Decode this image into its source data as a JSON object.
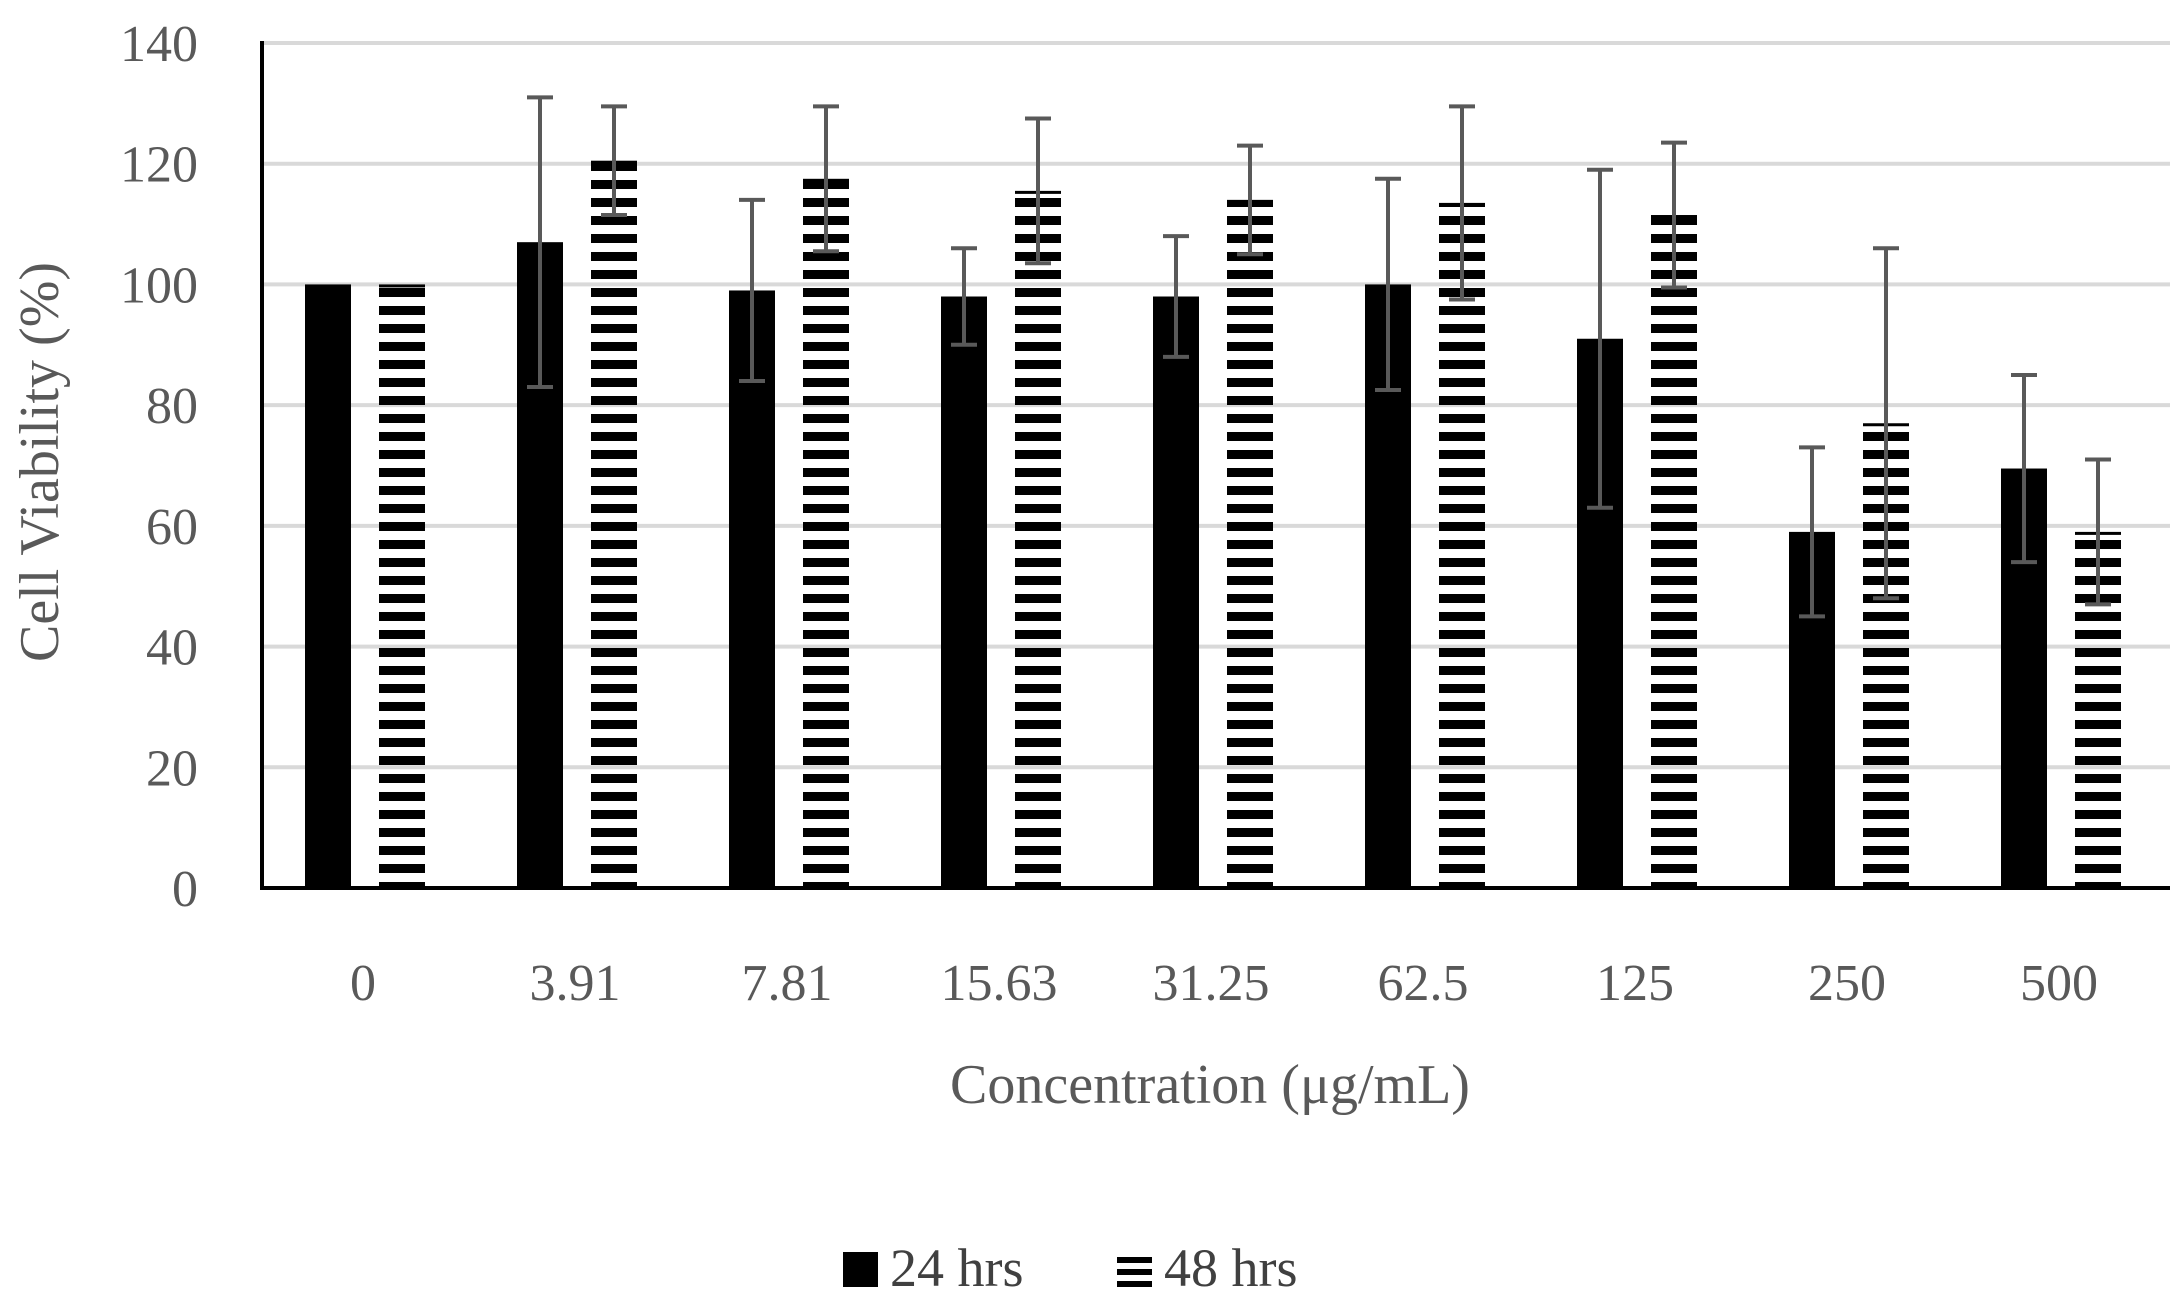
{
  "chart_data": {
    "type": "bar",
    "title": "",
    "xlabel": "Concentration  (μg/mL)",
    "ylabel": "Cell Viability (%)",
    "ylim": [
      0,
      140
    ],
    "yticks": [
      0,
      20,
      40,
      60,
      80,
      100,
      120,
      140
    ],
    "categories": [
      "0",
      "3.91",
      "7.81",
      "15.63",
      "31.25",
      "62.5",
      "125",
      "250",
      "500"
    ],
    "series": [
      {
        "name": "24 hrs",
        "fill": "solid",
        "color": "#000000",
        "values": [
          100,
          107,
          99,
          98,
          98,
          100,
          91,
          59,
          69.5
        ],
        "errors": [
          0,
          24,
          15,
          8,
          10,
          17.5,
          28,
          14,
          15.5
        ]
      },
      {
        "name": "48 hrs",
        "fill": "horizontal-stripes",
        "color": "#000000",
        "values": [
          100,
          120.5,
          117.5,
          115.5,
          114,
          113.5,
          111.5,
          77,
          59
        ],
        "errors": [
          0,
          9,
          12,
          12,
          9,
          16,
          12,
          29,
          12
        ]
      }
    ],
    "grid": "horizontal",
    "gridline_color": "#d9d9d9",
    "error_bar_color": "#595959",
    "legend_position": "bottom"
  }
}
